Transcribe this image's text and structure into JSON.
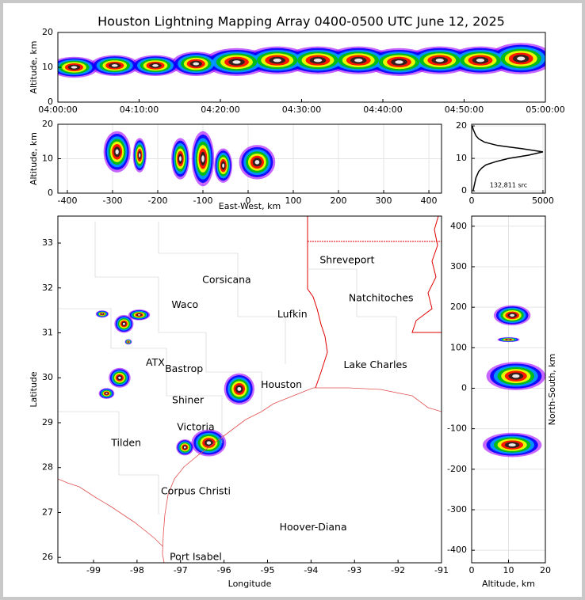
{
  "title": "Houston Lightning Mapping Array 0400-0500 UTC June 12, 2025",
  "colors": [
    "#a000ff",
    "#0000ff",
    "#00a0ff",
    "#00c000",
    "#ffff00",
    "#ff0000",
    "#202020",
    "#ffffff"
  ],
  "chart_data": [
    {
      "type": "density",
      "ylabel": "Altitude, km",
      "xlim": [
        0,
        60
      ],
      "ylim": [
        0,
        20
      ],
      "xticks": [
        {
          "value": 0,
          "label": "04:00:00"
        },
        {
          "value": 10,
          "label": "04:10:00"
        },
        {
          "value": 20,
          "label": "04:20:00"
        },
        {
          "value": 30,
          "label": "04:30:00"
        },
        {
          "value": 40,
          "label": "04:40:00"
        },
        {
          "value": 50,
          "label": "04:50:00"
        },
        {
          "value": 60,
          "label": "05:00:00"
        }
      ],
      "yticks": [
        0,
        10,
        20
      ],
      "grid": false,
      "blobs": [
        {
          "x": 2,
          "y": 10,
          "sx": 3,
          "sy": 3
        },
        {
          "x": 7,
          "y": 10.5,
          "sx": 3,
          "sy": 3
        },
        {
          "x": 12,
          "y": 10.5,
          "sx": 3,
          "sy": 3
        },
        {
          "x": 17,
          "y": 11,
          "sx": 3,
          "sy": 3.5
        },
        {
          "x": 22,
          "y": 11.5,
          "sx": 4,
          "sy": 4
        },
        {
          "x": 27,
          "y": 12,
          "sx": 4,
          "sy": 4
        },
        {
          "x": 32,
          "y": 12,
          "sx": 4,
          "sy": 4
        },
        {
          "x": 37,
          "y": 12,
          "sx": 4,
          "sy": 4
        },
        {
          "x": 42,
          "y": 11.5,
          "sx": 4,
          "sy": 4
        },
        {
          "x": 47,
          "y": 12,
          "sx": 4,
          "sy": 4
        },
        {
          "x": 52,
          "y": 12,
          "sx": 4,
          "sy": 4
        },
        {
          "x": 57,
          "y": 12.5,
          "sx": 4,
          "sy": 4.5
        }
      ]
    },
    {
      "type": "density",
      "xlabel": "East-West, km",
      "ylabel": "Altitude, km",
      "xlim": [
        -421,
        428
      ],
      "ylim": [
        0,
        20
      ],
      "xticks": [
        -400,
        -300,
        -200,
        -100,
        0,
        100,
        200,
        300,
        400
      ],
      "yticks": [
        0,
        10,
        20
      ],
      "grid": true,
      "blobs": [
        {
          "x": -290,
          "y": 12,
          "sx": 30,
          "sy": 6
        },
        {
          "x": -240,
          "y": 11,
          "sx": 15,
          "sy": 5
        },
        {
          "x": -150,
          "y": 10,
          "sx": 20,
          "sy": 6
        },
        {
          "x": -100,
          "y": 10,
          "sx": 25,
          "sy": 8
        },
        {
          "x": -55,
          "y": 8,
          "sx": 20,
          "sy": 5
        },
        {
          "x": 20,
          "y": 9,
          "sx": 40,
          "sy": 5
        }
      ]
    },
    {
      "type": "line",
      "xlim": [
        0,
        5170
      ],
      "ylim": [
        -0.7,
        20.5
      ],
      "xticks": [
        0,
        5000
      ],
      "yticks": [
        0,
        10,
        20
      ],
      "grid": true,
      "annotation": "132,811 src",
      "color": "#000000",
      "y": [
        0,
        1,
        2,
        3,
        4,
        5,
        6,
        7,
        8,
        9,
        10,
        11,
        12,
        13,
        14,
        15,
        16,
        17,
        18,
        19,
        20
      ],
      "values": [
        100,
        150,
        200,
        250,
        300,
        400,
        500,
        700,
        1000,
        1700,
        2600,
        4000,
        5000,
        3500,
        1800,
        900,
        500,
        300,
        200,
        100,
        50
      ]
    },
    {
      "type": "map",
      "xlabel": "Longitude",
      "ylabel": "Latitude",
      "xlim": [
        -99.82,
        -91
      ],
      "ylim": [
        25.88,
        33.6
      ],
      "xticks": [
        -99,
        -98,
        -97,
        -96,
        -95,
        -94,
        -93,
        -92,
        -91
      ],
      "yticks": [
        26,
        27,
        28,
        29,
        30,
        31,
        32,
        33
      ],
      "grid": false,
      "blobs": [
        {
          "x": -98.8,
          "y": 31.42,
          "sx": 0.15,
          "sy": 0.08
        },
        {
          "x": -98.3,
          "y": 31.2,
          "sx": 0.22,
          "sy": 0.2
        },
        {
          "x": -97.95,
          "y": 31.4,
          "sx": 0.25,
          "sy": 0.12
        },
        {
          "x": -98.2,
          "y": 30.8,
          "sx": 0.08,
          "sy": 0.06
        },
        {
          "x": -98.4,
          "y": 30.0,
          "sx": 0.25,
          "sy": 0.22
        },
        {
          "x": -98.7,
          "y": 29.65,
          "sx": 0.18,
          "sy": 0.12
        },
        {
          "x": -96.35,
          "y": 28.55,
          "sx": 0.4,
          "sy": 0.3
        },
        {
          "x": -96.9,
          "y": 28.45,
          "sx": 0.2,
          "sy": 0.18
        },
        {
          "x": -95.65,
          "y": 29.75,
          "sx": 0.35,
          "sy": 0.35
        }
      ],
      "cities": [
        {
          "name": "Shreveport",
          "x": -93.17,
          "y": 32.61
        },
        {
          "name": "Corsicana",
          "x": -95.94,
          "y": 32.17
        },
        {
          "name": "Natchitoches",
          "x": -92.39,
          "y": 31.77
        },
        {
          "name": "Waco",
          "x": -96.9,
          "y": 31.62
        },
        {
          "name": "Lufkin",
          "x": -94.43,
          "y": 31.41
        },
        {
          "name": "Lake Charles",
          "x": -92.52,
          "y": 30.28
        },
        {
          "name": "ATX",
          "x": -97.58,
          "y": 30.33,
          "color": "#f08040"
        },
        {
          "name": "Bastrop",
          "x": -96.92,
          "y": 30.19
        },
        {
          "name": "Houston",
          "x": -94.68,
          "y": 29.84,
          "color": "#e0a000"
        },
        {
          "name": "Shiner",
          "x": -96.83,
          "y": 29.49
        },
        {
          "name": "Victoria",
          "x": -96.65,
          "y": 28.89
        },
        {
          "name": "Tilden",
          "x": -98.25,
          "y": 28.54
        },
        {
          "name": "Corpus Christi",
          "x": -96.65,
          "y": 27.47
        },
        {
          "name": "Hoover-Diana",
          "x": -93.95,
          "y": 26.66,
          "color": "#0000e0"
        },
        {
          "name": "Port Isabel",
          "x": -96.65,
          "y": 26.0
        }
      ]
    },
    {
      "type": "density",
      "xlabel": "Altitude, km",
      "ylabel": "North-South, km",
      "xlim": [
        0,
        20
      ],
      "ylim": [
        -431,
        425
      ],
      "xticks": [
        0,
        10,
        20
      ],
      "yticks": [
        -400,
        -300,
        -200,
        -100,
        0,
        100,
        200,
        300,
        400
      ],
      "grid": true,
      "blobs": [
        {
          "x": 11,
          "y": 180,
          "sx": 5,
          "sy": 25
        },
        {
          "x": 10,
          "y": 120,
          "sx": 3,
          "sy": 6
        },
        {
          "x": 12,
          "y": 30,
          "sx": 8,
          "sy": 35
        },
        {
          "x": 11,
          "y": -140,
          "sx": 8,
          "sy": 30
        }
      ]
    }
  ]
}
